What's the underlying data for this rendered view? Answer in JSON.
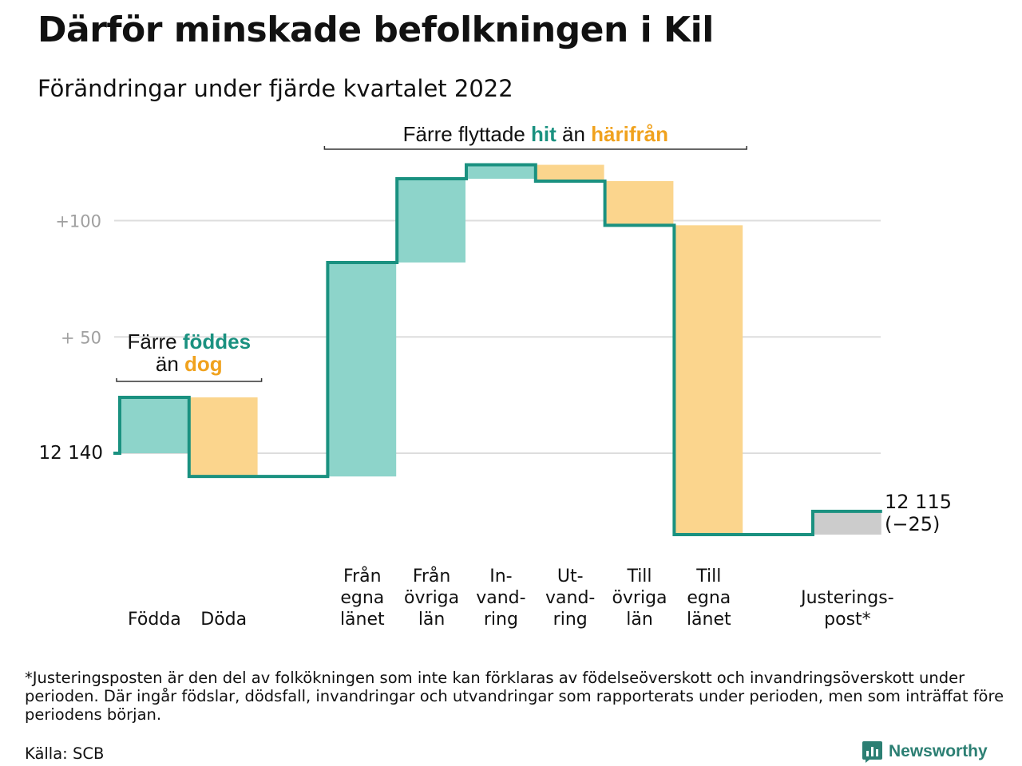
{
  "title": "Därför minskade befolkningen i Kil",
  "subtitle": "Förändringar under fjärde kvartalet 2022",
  "footnote": "*Justeringsposten är den del av folkökningen som inte kan förklaras av födelseöverskott och invandringsöverskott under perioden. Där ingår födslar, dödsfall, invandringar och utvandringar som rapporterats under perioden, men som inträffat före periodens början.",
  "source": "Källa: SCB",
  "brand": {
    "name": "Newsworthy"
  },
  "colors": {
    "increase": "#8dd4ca",
    "decrease": "#fbd58d",
    "adjustment": "#cccccc",
    "line": "#1a9180",
    "highlight_teal": "#1a9180",
    "highlight_orange": "#f0a21e",
    "grid": "#dddddd",
    "tick_label": "#a0a0a0"
  },
  "chart_data": {
    "type": "waterfall",
    "start_value": 12140,
    "start_label": "12 140",
    "end_label": "12 115",
    "net_change_label": "(−25)",
    "y_ticks": [
      {
        "value": 12190,
        "label": "+ 50"
      },
      {
        "value": 12240,
        "label": "+100"
      }
    ],
    "steps": [
      {
        "label": [
          "Födda"
        ],
        "change": 24,
        "kind": "increase"
      },
      {
        "label": [
          "Döda"
        ],
        "change": -34,
        "kind": "decrease"
      },
      {
        "label": [],
        "change": 0,
        "kind": "none"
      },
      {
        "label": [
          "Från",
          "egna",
          "länet"
        ],
        "change": 92,
        "kind": "increase"
      },
      {
        "label": [
          "Från",
          "övriga",
          "län"
        ],
        "change": 36,
        "kind": "increase"
      },
      {
        "label": [
          "In-",
          "vand-",
          "ring"
        ],
        "change": 6,
        "kind": "increase"
      },
      {
        "label": [
          "Ut-",
          "vand-",
          "ring"
        ],
        "change": -7,
        "kind": "decrease"
      },
      {
        "label": [
          "Till",
          "övriga",
          "län"
        ],
        "change": -19,
        "kind": "decrease"
      },
      {
        "label": [
          "Till",
          "egna",
          "länet"
        ],
        "change": -133,
        "kind": "decrease"
      },
      {
        "label": [],
        "change": 0,
        "kind": "none"
      },
      {
        "label": [
          "Justerings-",
          "post*"
        ],
        "change": 10,
        "kind": "adjustment"
      }
    ],
    "annotations": [
      {
        "parts": [
          [
            "Färre ",
            "plain"
          ],
          [
            "föddes",
            "teal"
          ]
        ],
        "parts2": [
          [
            "än ",
            "plain"
          ],
          [
            "dog",
            "orange"
          ]
        ],
        "span": [
          0,
          1
        ]
      },
      {
        "parts": [
          [
            "Färre flyttade ",
            "plain"
          ],
          [
            "hit",
            "teal"
          ],
          [
            " än ",
            "plain"
          ],
          [
            "härifrån",
            "orange"
          ]
        ],
        "span": [
          3,
          8
        ]
      }
    ]
  }
}
